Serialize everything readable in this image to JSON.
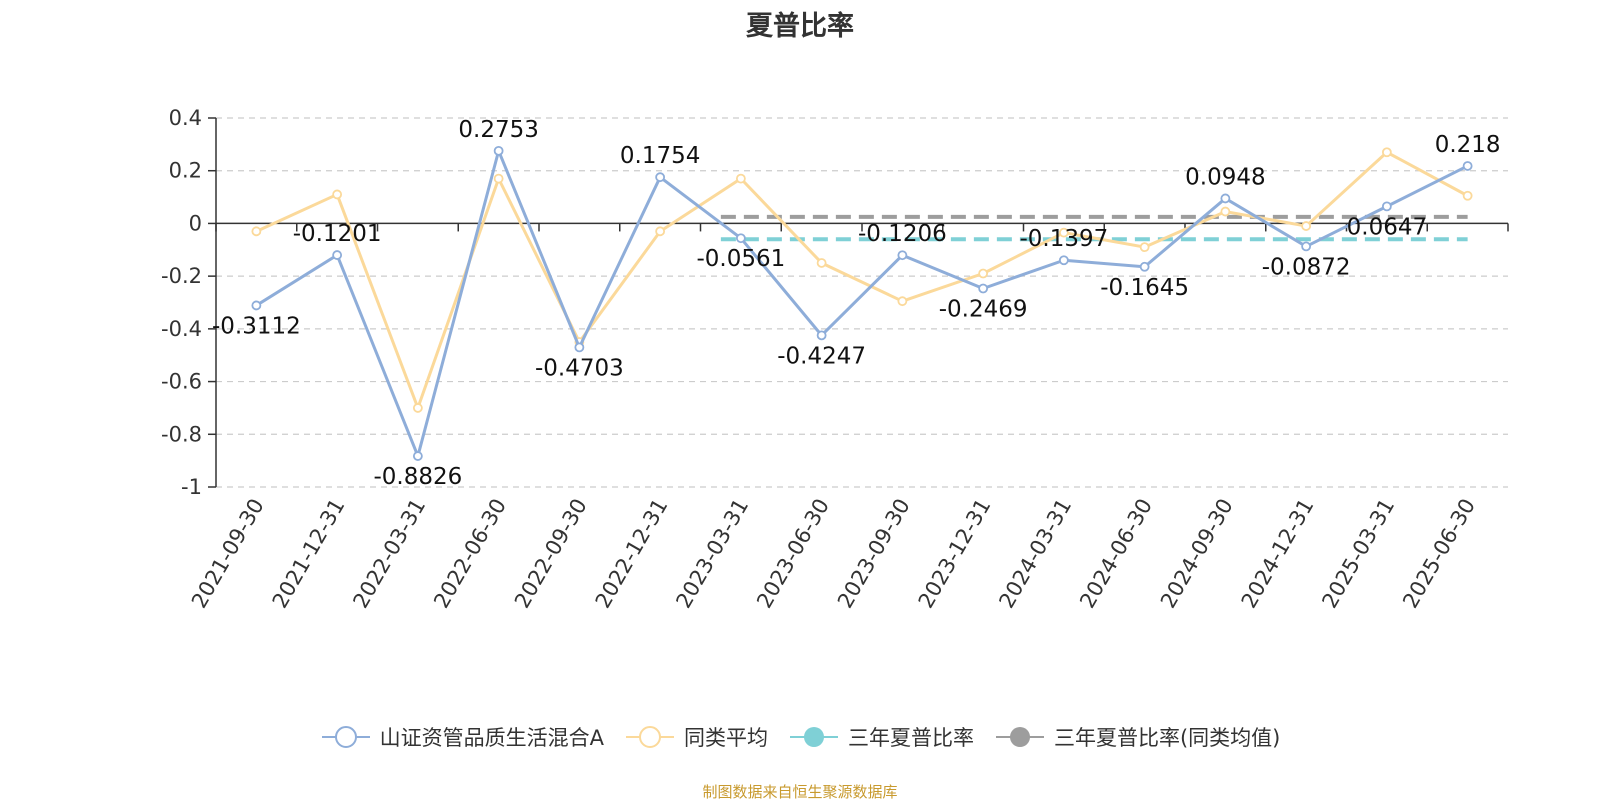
{
  "chart_data": {
    "type": "line",
    "title": "夏普比率",
    "categories": [
      "2021-09-30",
      "2021-12-31",
      "2022-03-31",
      "2022-06-30",
      "2022-09-30",
      "2022-12-31",
      "2023-03-31",
      "2023-06-30",
      "2023-09-30",
      "2023-12-31",
      "2024-03-31",
      "2024-06-30",
      "2024-09-30",
      "2024-12-31",
      "2025-03-31",
      "2025-06-30"
    ],
    "yticks": [
      "0.4",
      "0.2",
      "0",
      "-0.2",
      "-0.4",
      "-0.6",
      "-0.8",
      "-1"
    ],
    "ylim": [
      -1,
      0.4
    ],
    "grid": true,
    "legend_position": "bottom",
    "series": [
      {
        "name": "山证资管品质生活混合A",
        "color": "#8eadd9",
        "values": [
          -0.3112,
          -0.1201,
          -0.8826,
          0.2753,
          -0.4703,
          0.1754,
          -0.0561,
          -0.4247,
          -0.1206,
          -0.2469,
          -0.1397,
          -0.1645,
          0.0948,
          -0.0872,
          0.0647,
          0.218
        ],
        "labels": [
          "-0.3112",
          "-0.1201",
          "-0.8826",
          "0.2753",
          "-0.4703",
          "0.1754",
          "-0.0561",
          "-0.4247",
          "-0.1206",
          "-0.2469",
          "-0.1397",
          "-0.1645",
          "0.0948",
          "-0.0872",
          "0.0647",
          "0.218"
        ]
      },
      {
        "name": "同类平均",
        "color": "#fbd99a",
        "values": [
          -0.03,
          0.11,
          -0.7,
          0.17,
          -0.45,
          -0.03,
          0.17,
          -0.15,
          -0.295,
          -0.19,
          -0.035,
          -0.09,
          0.045,
          -0.01,
          0.27,
          0.105
        ]
      },
      {
        "name": "三年夏普比率",
        "color": "#7fd0d6",
        "value": -0.06,
        "from_index": 6,
        "to_index": 15
      },
      {
        "name": "三年夏普比率(同类均值)",
        "color": "#9d9d9d",
        "value": 0.025,
        "from_index": 6,
        "to_index": 15
      }
    ],
    "source": "制图数据来自恒生聚源数据库"
  }
}
